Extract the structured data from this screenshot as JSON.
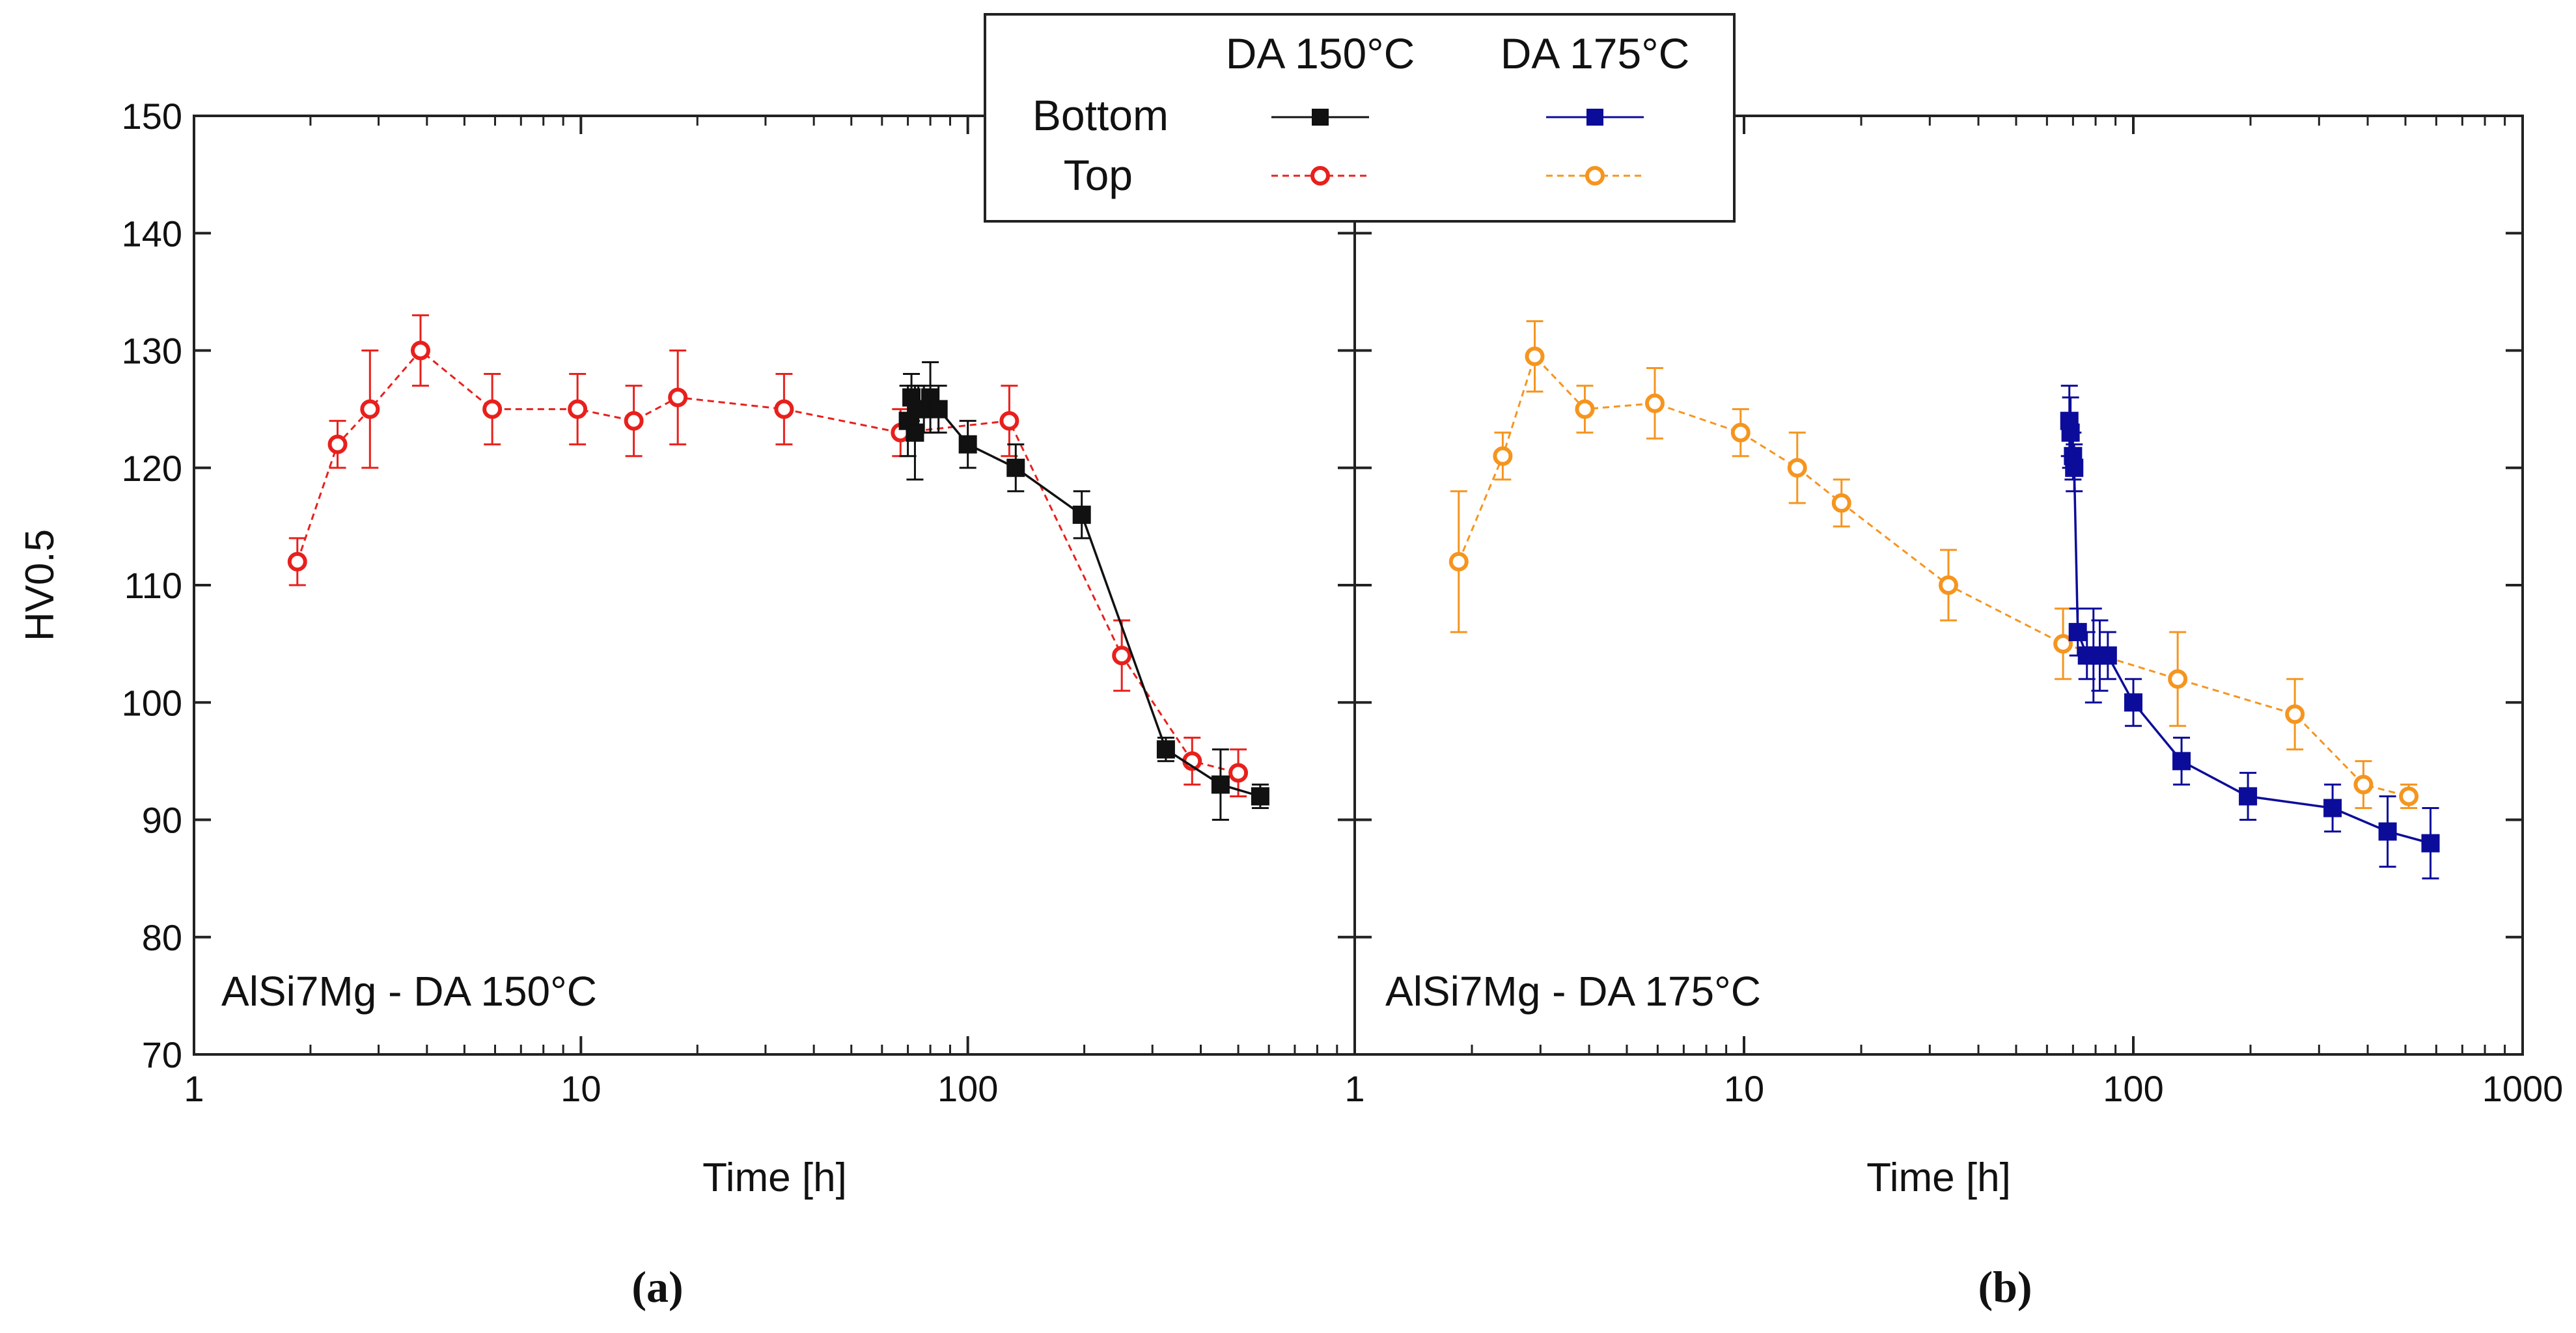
{
  "colors": {
    "bottom150": "#111111",
    "top150": "#e8201c",
    "bottom175": "#0c0c9a",
    "top175": "#f5951f"
  },
  "legend": {
    "col1": "DA 150°C",
    "col2": "DA 175°C",
    "row1": "Bottom",
    "row2": "Top"
  },
  "chart_data": [
    {
      "type": "scatter",
      "panel_label": "(a)",
      "annotation": "AlSi7Mg - DA 150°C",
      "xlabel": "Time [h]",
      "ylabel": "HV0.5",
      "xscale": "log",
      "xlim": [
        1,
        1000
      ],
      "ylim": [
        70,
        150
      ],
      "xticks": [
        1,
        10,
        100
      ],
      "xtick_labels": [
        "1",
        "10",
        "100"
      ],
      "yticks": [
        70,
        80,
        90,
        100,
        110,
        120,
        130,
        140,
        150
      ],
      "series": [
        {
          "name": "Top",
          "key": "top150",
          "marker": "open-circle",
          "line": "dashed",
          "x": [
            1.85,
            2.35,
            2.85,
            3.85,
            5.9,
            9.8,
            13.7,
            17.8,
            33.5,
            67,
            128,
            250,
            380,
            500
          ],
          "y": [
            112,
            122,
            125,
            130,
            125,
            125,
            124,
            126,
            125,
            123,
            124,
            104,
            95,
            94
          ],
          "err": [
            2,
            2,
            5,
            3,
            3,
            3,
            3,
            4,
            3,
            2,
            3,
            3,
            2,
            2
          ]
        },
        {
          "name": "Bottom",
          "key": "bottom150",
          "marker": "filled-square",
          "line": "solid",
          "x": [
            70,
            71.5,
            73,
            74.5,
            77,
            80,
            84,
            100,
            133,
            197,
            325,
            450,
            570
          ],
          "y": [
            124,
            126,
            123,
            125,
            125,
            126,
            125,
            122,
            120,
            116,
            96,
            93,
            92
          ],
          "err": [
            3,
            2,
            4,
            2,
            2,
            3,
            2,
            2,
            2,
            2,
            1,
            3,
            1
          ]
        }
      ]
    },
    {
      "type": "scatter",
      "panel_label": "(b)",
      "annotation": "AlSi7Mg - DA 175°C",
      "xlabel": "Time [h]",
      "ylabel": "",
      "xscale": "log",
      "xlim": [
        1,
        1000
      ],
      "ylim": [
        70,
        150
      ],
      "xticks": [
        1,
        10,
        100,
        1000
      ],
      "xtick_labels": [
        "1",
        "10",
        "100",
        "1000"
      ],
      "yticks": [
        70,
        80,
        90,
        100,
        110,
        120,
        130,
        140,
        150
      ],
      "series": [
        {
          "name": "Top",
          "key": "top175",
          "marker": "open-circle",
          "line": "dashed",
          "x": [
            1.85,
            2.4,
            2.9,
            3.9,
            5.9,
            9.8,
            13.7,
            17.8,
            33.5,
            66,
            130,
            260,
            390,
            510
          ],
          "y": [
            112,
            121,
            129.5,
            125,
            125.5,
            123,
            120,
            117,
            110,
            105,
            102,
            99,
            93,
            92
          ],
          "err": [
            6,
            2,
            3,
            2,
            3,
            2,
            3,
            2,
            3,
            3,
            4,
            3,
            2,
            1
          ]
        },
        {
          "name": "Bottom",
          "key": "bottom175",
          "marker": "filled-square",
          "line": "solid",
          "x": [
            68.5,
            69,
            70,
            70.5,
            72,
            76,
            79,
            82,
            86,
            100,
            133,
            197,
            325,
            450,
            580
          ],
          "y": [
            124,
            123,
            121,
            120,
            106,
            104,
            104,
            104,
            104,
            100,
            95,
            92,
            91,
            89,
            88
          ],
          "err": [
            3,
            3,
            2,
            2,
            2,
            2,
            4,
            3,
            2,
            2,
            2,
            2,
            2,
            3,
            3
          ]
        }
      ]
    }
  ]
}
